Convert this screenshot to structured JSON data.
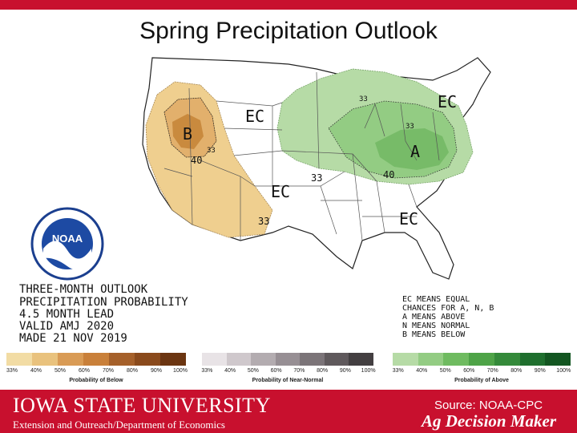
{
  "title": "Spring Precipitation Outlook",
  "map_labels": {
    "ec_north": "EC",
    "ec_northeast": "EC",
    "ec_central": "EC",
    "ec_south": "EC",
    "b_west": "B",
    "a_east": "A",
    "c40_west": "40",
    "c33_central": "33",
    "c40_east": "40",
    "c33_southwest": "33",
    "c33_north": "33",
    "c33_ohio": "33",
    "c33_west_b": "33"
  },
  "outlook_block": {
    "line1": "THREE-MONTH OUTLOOK",
    "line2": "PRECIPITATION PROBABILITY",
    "line3": "4.5 MONTH LEAD",
    "line4": "VALID AMJ 2020",
    "line5": "MADE 21 NOV 2019"
  },
  "ec_block": {
    "line1": "EC MEANS EQUAL",
    "line2": "CHANCES FOR A, N, B",
    "line3": "A MEANS ABOVE",
    "line4": "N MEANS NORMAL",
    "line5": "B MEANS BELOW"
  },
  "legend": {
    "below": {
      "caption": "Probability of Below",
      "ticks": [
        "33%",
        "40%",
        "50%",
        "60%",
        "70%",
        "80%",
        "90%",
        "100%"
      ],
      "colors": [
        "#f2dca4",
        "#e9c27d",
        "#d99b55",
        "#c9803a",
        "#a5602a",
        "#8a4a1c",
        "#6b3511"
      ]
    },
    "normal": {
      "caption": "Probability of Near-Normal",
      "ticks": [
        "33%",
        "40%",
        "50%",
        "60%",
        "70%",
        "80%",
        "90%",
        "100%"
      ],
      "colors": [
        "#e8e3e6",
        "#cfc8cc",
        "#b3acb0",
        "#978f94",
        "#7b7478",
        "#5f595c",
        "#433f41"
      ]
    },
    "above": {
      "caption": "Probability of Above",
      "ticks": [
        "33%",
        "40%",
        "50%",
        "60%",
        "70%",
        "80%",
        "90%",
        "100%"
      ],
      "colors": [
        "#b6dba6",
        "#93cc83",
        "#6fbb60",
        "#4ea347",
        "#348a3a",
        "#1f6f2e",
        "#135621"
      ]
    }
  },
  "colors": {
    "below_light": "#efcf8f",
    "below_mid": "#e2b06c",
    "below_dark": "#c98a3e",
    "above_light": "#b6dba6",
    "above_mid": "#93cc83",
    "above_dark": "#77bb68",
    "accent": "#c8102e"
  },
  "footer": {
    "university": "IOWA STATE UNIVERSITY",
    "department": "Extension and Outreach/Department of Economics",
    "source": "Source: NOAA-CPC",
    "brand": "Ag Decision Maker"
  },
  "noaa": {
    "logo_text": "NOAA"
  }
}
